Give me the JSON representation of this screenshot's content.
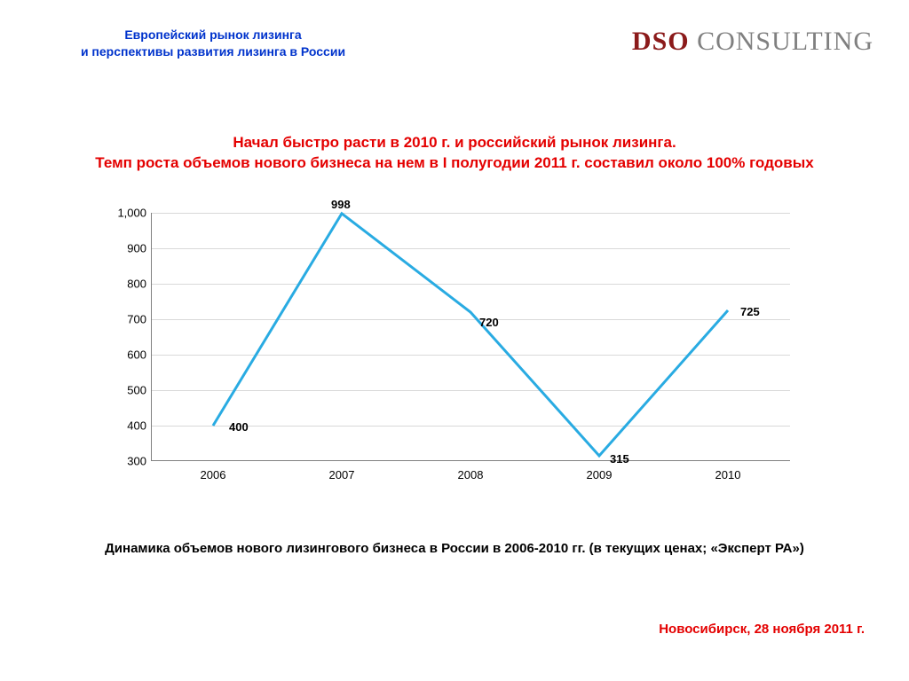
{
  "header": {
    "title_line1": "Европейский рынок лизинга",
    "title_line2": "и перспективы развития лизинга в России",
    "title_color": "#0033cc"
  },
  "logo": {
    "dso_text": "DSO",
    "dso_color": "#8b1a1a",
    "cons_text": " CONSULTING",
    "cons_color": "#808080"
  },
  "headline": {
    "line1": "Начал быстро расти в 2010 г. и российский рынок лизинга.",
    "line2": "Темп роста объемов нового бизнеса на нем в I полугодии 2011 г.  составил около 100% годовых",
    "color": "#e40000"
  },
  "chart": {
    "type": "line",
    "line_color": "#29abe2",
    "line_width": 3,
    "grid_color": "#d9d9d9",
    "axis_color": "#808080",
    "label_color": "#000000",
    "label_fontsize": 13,
    "data_label_fontsize": 13,
    "data_label_fontweight": "bold",
    "ylim": [
      300,
      1000
    ],
    "ytick_step": 100,
    "yticks": [
      "300",
      "400",
      "500",
      "600",
      "700",
      "800",
      "900",
      "1,000"
    ],
    "categories": [
      "2006",
      "2007",
      "2008",
      "2009",
      "2010"
    ],
    "values": [
      400,
      998,
      720,
      315,
      725
    ],
    "value_labels": [
      "400",
      "998",
      "720",
      "315",
      "725"
    ]
  },
  "caption": "Динамика объемов нового лизингового бизнеса в России в 2006-2010 гг. (в текущих ценах; «Эксперт РА»)",
  "footer": {
    "text": "Новосибирск, 28 ноября 2011 г.",
    "color": "#e40000"
  }
}
